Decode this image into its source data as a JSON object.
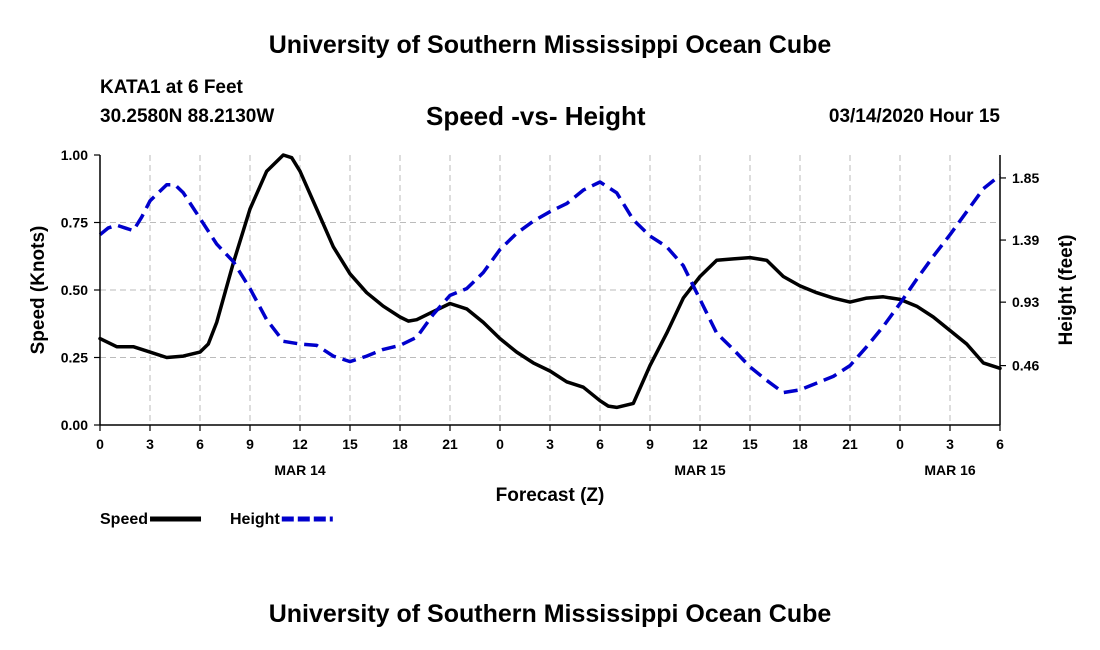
{
  "header": {
    "title": "University of Southern Mississippi Ocean Cube",
    "station": "KATA1 at 6 Feet",
    "coords": "30.2580N 88.2130W",
    "subtitle": "Speed -vs- Height",
    "datetime": "03/14/2020 Hour 15"
  },
  "footer": {
    "title": "University of Southern Mississippi Ocean Cube"
  },
  "chart_data": {
    "type": "line",
    "xlabel": "Forecast (Z)",
    "ylabel_left": "Speed (Knots)",
    "ylabel_right": "Height (feet)",
    "x_range": [
      0,
      54
    ],
    "x_ticks": [
      "0",
      "3",
      "6",
      "9",
      "12",
      "15",
      "18",
      "21",
      "0",
      "3",
      "6",
      "9",
      "12",
      "15",
      "18",
      "21",
      "0",
      "3",
      "6"
    ],
    "date_labels": [
      {
        "label": "MAR 14",
        "hour": 12
      },
      {
        "label": "MAR 15",
        "hour": 36
      },
      {
        "label": "MAR 16",
        "hour": 51
      }
    ],
    "ylim_left": [
      0,
      1
    ],
    "yticks_left": [
      "0.00",
      "0.25",
      "0.50",
      "0.75",
      "1.00"
    ],
    "yticks_left_values": [
      0,
      0.25,
      0.5,
      0.75,
      1
    ],
    "ylim_right": [
      0.02,
      2.02
    ],
    "yticks_right": [
      "0.46",
      "0.93",
      "1.39",
      "1.85"
    ],
    "yticks_right_values": [
      0.46,
      0.93,
      1.39,
      1.85
    ],
    "grid": true,
    "series": [
      {
        "name": "Speed",
        "color": "#000000",
        "axis": "left",
        "dashed": false,
        "x": [
          0,
          1,
          2,
          3,
          4,
          5,
          6,
          6.5,
          7,
          8,
          9,
          10,
          11,
          11.5,
          12,
          13,
          14,
          15,
          16,
          17,
          18,
          18.5,
          19,
          20,
          21,
          22,
          23,
          24,
          25,
          26,
          27,
          28,
          29,
          30,
          30.5,
          31,
          32,
          33,
          34,
          35,
          36,
          37,
          38,
          39,
          40,
          41,
          42,
          43,
          44,
          45,
          46,
          47,
          48,
          49,
          50,
          51,
          52,
          53,
          54
        ],
        "values": [
          0.32,
          0.29,
          0.29,
          0.27,
          0.25,
          0.255,
          0.27,
          0.3,
          0.38,
          0.6,
          0.8,
          0.94,
          1.0,
          0.99,
          0.94,
          0.8,
          0.66,
          0.56,
          0.49,
          0.44,
          0.4,
          0.385,
          0.39,
          0.42,
          0.45,
          0.43,
          0.38,
          0.32,
          0.27,
          0.23,
          0.2,
          0.16,
          0.14,
          0.09,
          0.07,
          0.065,
          0.08,
          0.22,
          0.34,
          0.47,
          0.55,
          0.61,
          0.615,
          0.62,
          0.61,
          0.55,
          0.515,
          0.49,
          0.47,
          0.455,
          0.47,
          0.475,
          0.465,
          0.44,
          0.4,
          0.35,
          0.3,
          0.23,
          0.21
        ]
      },
      {
        "name": "Height",
        "color": "#0000cc",
        "axis": "right",
        "dashed": true,
        "x": [
          0,
          0.5,
          1,
          1.5,
          2,
          2.5,
          3,
          4,
          4.5,
          5,
          6,
          7,
          8,
          9,
          10,
          11,
          12,
          13,
          14,
          15,
          16,
          17,
          18,
          19,
          20,
          21,
          22,
          23,
          24,
          25,
          26,
          27,
          28,
          29,
          30,
          31,
          32,
          33,
          34,
          35,
          36,
          37,
          38,
          39,
          40,
          41,
          42,
          43,
          44,
          45,
          46,
          47,
          48,
          49,
          50,
          51,
          52,
          53,
          54
        ],
        "values": [
          1.43,
          1.48,
          1.5,
          1.48,
          1.46,
          1.56,
          1.68,
          1.8,
          1.8,
          1.74,
          1.55,
          1.36,
          1.23,
          1.03,
          0.8,
          0.64,
          0.62,
          0.61,
          0.53,
          0.49,
          0.53,
          0.58,
          0.61,
          0.67,
          0.84,
          0.98,
          1.03,
          1.15,
          1.32,
          1.44,
          1.53,
          1.6,
          1.66,
          1.76,
          1.82,
          1.74,
          1.54,
          1.42,
          1.34,
          1.2,
          0.95,
          0.7,
          0.58,
          0.45,
          0.35,
          0.26,
          0.28,
          0.33,
          0.38,
          0.46,
          0.6,
          0.75,
          0.92,
          1.1,
          1.27,
          1.43,
          1.6,
          1.77,
          1.87
        ]
      }
    ],
    "legend": [
      {
        "label": "Speed",
        "color": "#000000",
        "dashed": false
      },
      {
        "label": "Height",
        "color": "#0000cc",
        "dashed": true
      }
    ],
    "legend_position": "bottom-left"
  }
}
